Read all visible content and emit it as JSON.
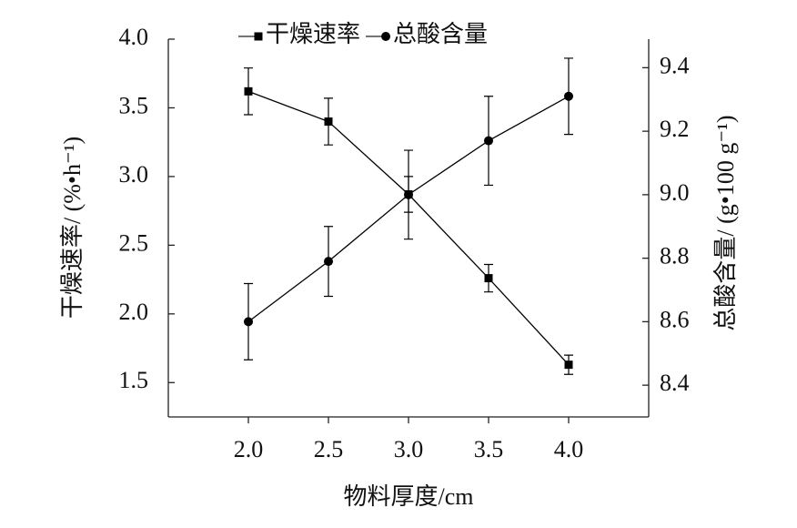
{
  "chart_data": {
    "type": "line",
    "x_label": "物料厚度/cm",
    "y_label": "干燥速率/ (%•h⁻¹)",
    "y2_label": "总酸含量/ (g•100 g⁻¹)",
    "x": [
      2.0,
      2.5,
      3.0,
      3.5,
      4.0
    ],
    "xlim": [
      1.5,
      4.5
    ],
    "xticks": [
      {
        "value": 2,
        "label": "2.0"
      },
      2.5,
      {
        "value": 3,
        "label": "3.0"
      },
      3.5,
      {
        "value": 4,
        "label": "4.0"
      }
    ],
    "ylim": [
      1.25,
      4.0
    ],
    "yticks": [
      1.5,
      {
        "value": 2,
        "label": "2.0"
      },
      2.5,
      {
        "value": 3,
        "label": "3.0"
      },
      3.5,
      {
        "value": 4,
        "label": "4.0"
      }
    ],
    "y2lim": [
      8.3,
      9.49
    ],
    "y2ticks": [
      8.4,
      8.6,
      8.8,
      {
        "value": 9,
        "label": "9.0"
      },
      9.2,
      9.4
    ],
    "legend": "upper center",
    "series": [
      {
        "name": "干燥速率",
        "color": "#000000",
        "marker": "square",
        "axis": "y",
        "values": [
          3.62,
          3.4,
          2.87,
          2.26,
          1.63
        ],
        "errors": [
          0.17,
          0.17,
          0.13,
          0.1,
          0.07
        ]
      },
      {
        "name": "总酸含量",
        "color": "#000000",
        "marker": "circle",
        "axis": "y2",
        "values": [
          8.6,
          8.79,
          9.0,
          9.17,
          9.31
        ],
        "errors": [
          0.12,
          0.11,
          0.14,
          0.14,
          0.12
        ]
      }
    ]
  }
}
